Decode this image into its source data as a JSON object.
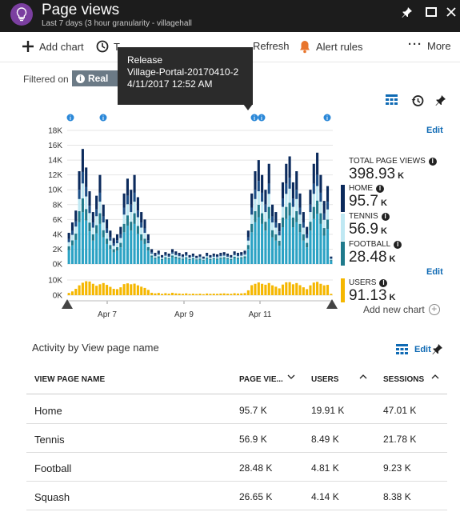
{
  "header": {
    "title": "Page views",
    "subtitle": "Last 7 days (3 hour granularity - villagehall"
  },
  "toolbar": {
    "add_chart": "Add chart",
    "time_range": "T",
    "refresh": "Refresh",
    "alert_rules": "Alert rules",
    "more": "More"
  },
  "filter": {
    "label": "Filtered on",
    "chip": "Real us"
  },
  "tooltip": {
    "line1": "Release",
    "line2": "Village-Portal-20170410-2",
    "line3": "4/11/2017 12:52 AM"
  },
  "legend": {
    "total_label": "TOTAL PAGE VIEWS",
    "total_value": "398.93",
    "total_unit": "K",
    "home_label": "HOME",
    "home_value": "95.7",
    "home_unit": "K",
    "tennis_label": "TENNIS",
    "tennis_value": "56.9",
    "tennis_unit": "K",
    "football_label": "FOOTBALL",
    "football_value": "28.48",
    "football_unit": "K",
    "users_label": "USERS",
    "users_value": "91.13",
    "users_unit": "K",
    "edit1": "Edit",
    "edit2": "Edit",
    "add_new_chart": "Add new chart"
  },
  "colors": {
    "home": "#0b2a5c",
    "tennis": "#bfe8f3",
    "football": "#1f7a8c",
    "squash": "#2ba2c4",
    "other": "#1c4e87",
    "users": "#f5b700",
    "accent": "#0f6ab4"
  },
  "chart_data": [
    {
      "type": "bar",
      "stacked": true,
      "title": "",
      "y_ticks": [
        "18K",
        "16K",
        "14K",
        "12K",
        "10K",
        "8K",
        "6K",
        "4K",
        "2K",
        "0K"
      ],
      "ylim": [
        0,
        18000
      ],
      "x_ticks": [
        "Apr 7",
        "Apr 9",
        "Apr 11"
      ],
      "series": [
        {
          "name": "Home",
          "color": "#0b2a5c"
        },
        {
          "name": "Tennis",
          "color": "#bfe8f3"
        },
        {
          "name": "Football",
          "color": "#1f7a8c"
        }
      ],
      "totals": [
        4200,
        5600,
        7200,
        12500,
        15500,
        13000,
        9800,
        7000,
        9200,
        12000,
        8000,
        6000,
        4500,
        3500,
        4000,
        5000,
        9500,
        11500,
        10000,
        12000,
        9000,
        7000,
        6000,
        4000,
        2000,
        1500,
        1800,
        1200,
        1600,
        1400,
        2000,
        1700,
        1500,
        1300,
        1600,
        1200,
        1400,
        1100,
        1300,
        1000,
        1500,
        1200,
        1400,
        1300,
        1500,
        1600,
        1400,
        1200,
        1700,
        1500,
        1600,
        1800,
        4500,
        9500,
        12500,
        14000,
        12000,
        10000,
        13500,
        8000,
        7000,
        5500,
        11000,
        13500,
        14500,
        11000,
        12500,
        9500,
        7000,
        5000,
        10000,
        13500,
        15000,
        12000,
        8500,
        10500,
        1000
      ]
    },
    {
      "type": "bar",
      "title": "",
      "y_ticks": [
        "10K",
        "0K"
      ],
      "ylim": [
        0,
        10000
      ],
      "series": [
        {
          "name": "Users",
          "color": "#f5b700"
        }
      ],
      "values": [
        1500,
        2500,
        4200,
        6500,
        8200,
        9200,
        9000,
        7500,
        6200,
        7200,
        8000,
        6800,
        5500,
        4200,
        4000,
        5200,
        7300,
        7800,
        7200,
        7600,
        6500,
        5600,
        4800,
        3500,
        1600,
        1200,
        1500,
        900,
        1300,
        1000,
        1600,
        1200,
        1100,
        900,
        1200,
        800,
        1000,
        800,
        1000,
        700,
        1100,
        900,
        1000,
        900,
        1100,
        1200,
        1000,
        900,
        1300,
        1100,
        1200,
        1400,
        3200,
        6600,
        7500,
        8400,
        7500,
        6900,
        8000,
        6500,
        5600,
        4500,
        7000,
        8500,
        8600,
        7200,
        8000,
        6600,
        5200,
        4000,
        6500,
        8300,
        8800,
        7500,
        6500,
        6800,
        900
      ]
    }
  ],
  "activity": {
    "title": "Activity by View page name",
    "edit": "Edit",
    "columns": [
      "VIEW PAGE NAME",
      "PAGE VIE...",
      "USERS",
      "SESSIONS"
    ],
    "rows": [
      {
        "name": "Home",
        "views": "95.7 K",
        "users": "19.91 K",
        "sessions": "47.01 K"
      },
      {
        "name": "Tennis",
        "views": "56.9 K",
        "users": "8.49 K",
        "sessions": "21.78 K"
      },
      {
        "name": "Football",
        "views": "28.48 K",
        "users": "4.81 K",
        "sessions": "9.23 K"
      },
      {
        "name": "Squash",
        "views": "26.65 K",
        "users": "4.14 K",
        "sessions": "8.38 K"
      }
    ]
  }
}
